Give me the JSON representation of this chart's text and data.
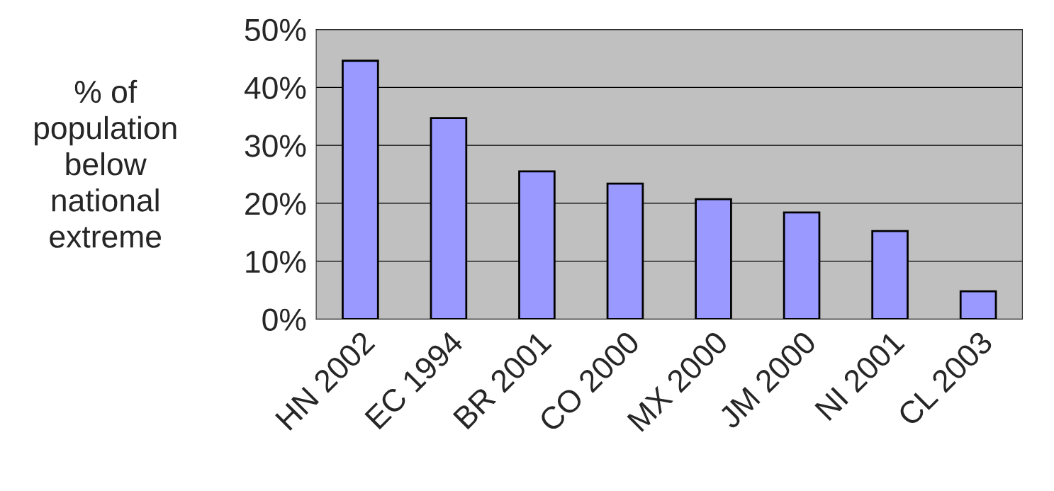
{
  "chart_data": {
    "type": "bar",
    "ylabel": "% of\npopulation\nbelow\nnational\nextreme",
    "categories": [
      "HN 2002",
      "EC 1994",
      "BR 2001",
      "CO 2000",
      "MX 2000",
      "JM 2000",
      "NI 2001",
      "CL 2003"
    ],
    "values": [
      44.6,
      34.7,
      25.5,
      23.4,
      20.7,
      18.4,
      15.2,
      4.8
    ],
    "color": "#9999ff",
    "ylim": [
      0,
      50
    ],
    "yticks": [
      {
        "value": 0,
        "label": "0%"
      },
      {
        "value": 10,
        "label": "10%"
      },
      {
        "value": 20,
        "label": "20%"
      },
      {
        "value": 30,
        "label": "30%"
      },
      {
        "value": 40,
        "label": "40%"
      },
      {
        "value": 50,
        "label": "50%"
      }
    ],
    "grid": "y"
  }
}
